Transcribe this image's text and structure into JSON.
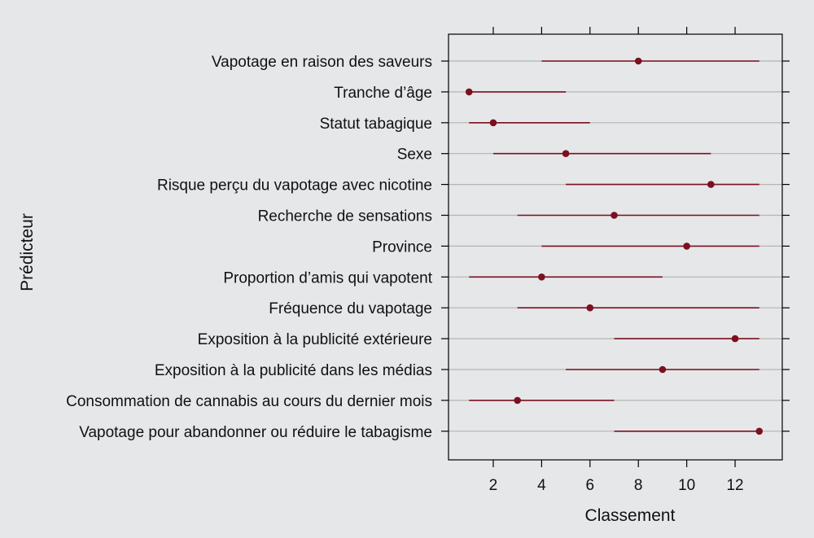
{
  "chart_data": {
    "type": "scatter",
    "xlabel": "Classement",
    "ylabel": "Prédicteur",
    "xlim": [
      0.15,
      13.95
    ],
    "xticks": [
      2,
      4,
      6,
      8,
      10,
      12
    ],
    "grid": true,
    "colors": {
      "marker": "#7b1020",
      "gridline": "#b4b4b4",
      "axis": "#000000",
      "background": "#e6e7e9"
    },
    "categories": [
      "Vapotage en raison des saveurs",
      "Tranche d’âge",
      "Statut tabagique",
      "Sexe",
      "Risque perçu du vapotage avec nicotine",
      "Recherche de sensations",
      "Province",
      "Proportion d’amis qui vapotent",
      "Fréquence du vapotage",
      "Exposition à la publicité extérieure",
      "Exposition à la publicité dans les médias",
      "Consommation de cannabis au cours du dernier mois",
      "Vapotage pour abandonner ou réduire le tabagisme"
    ],
    "series": [
      {
        "values": [
          8,
          1,
          2,
          5,
          11,
          7,
          10,
          4,
          6,
          12,
          9,
          3,
          13
        ],
        "lower": [
          4,
          1,
          1,
          2,
          5,
          3,
          4,
          1,
          3,
          7,
          5,
          1,
          7
        ],
        "upper": [
          13,
          5,
          6,
          11,
          13,
          13,
          13,
          9,
          13,
          13,
          13,
          7,
          13
        ]
      }
    ]
  }
}
